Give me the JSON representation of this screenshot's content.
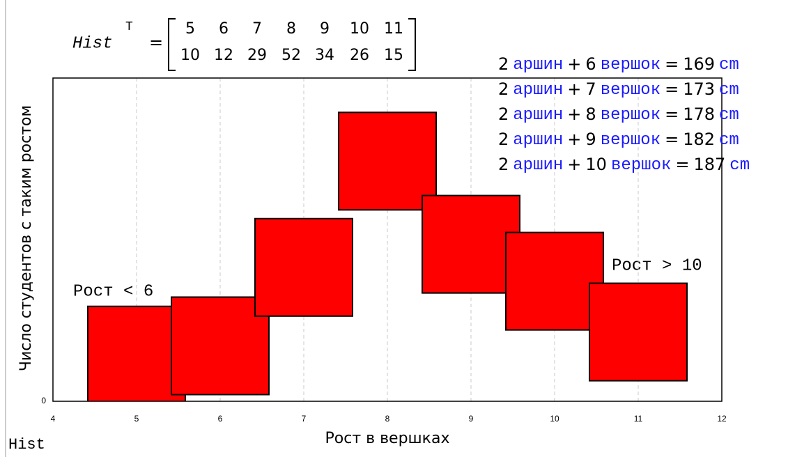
{
  "chart_data": {
    "type": "scatter",
    "marker": "square",
    "color": "#ff0000",
    "x": [
      5,
      6,
      7,
      8,
      9,
      10,
      11
    ],
    "values": [
      10,
      12,
      29,
      52,
      34,
      26,
      15
    ],
    "xlim": [
      4,
      12
    ],
    "xticks": [
      4,
      5,
      6,
      7,
      8,
      9,
      10,
      11,
      12
    ],
    "ylim": [
      0,
      70
    ],
    "yticks": [
      0
    ],
    "grid": true,
    "xlabel": "Рост в вершках",
    "ylabel": "Число студентов с таким ростом",
    "annotations": [
      "Рост < 6",
      "Рост > 10"
    ]
  },
  "matrix": {
    "name": "Hist",
    "superscript": "T",
    "equals": "="
  },
  "conversions": {
    "unit_arshin": "аршин",
    "unit_vershok": "вершок",
    "unit_cm": "cm",
    "plus": "+",
    "equals": "=",
    "rows": [
      {
        "arshin": 2,
        "vershok": 6,
        "cm": 169
      },
      {
        "arshin": 2,
        "vershok": 7,
        "cm": 173
      },
      {
        "arshin": 2,
        "vershok": 8,
        "cm": 178
      },
      {
        "arshin": 2,
        "vershok": 9,
        "cm": 182
      },
      {
        "arshin": 2,
        "vershok": 10,
        "cm": 187
      }
    ]
  },
  "footer": "Hist"
}
